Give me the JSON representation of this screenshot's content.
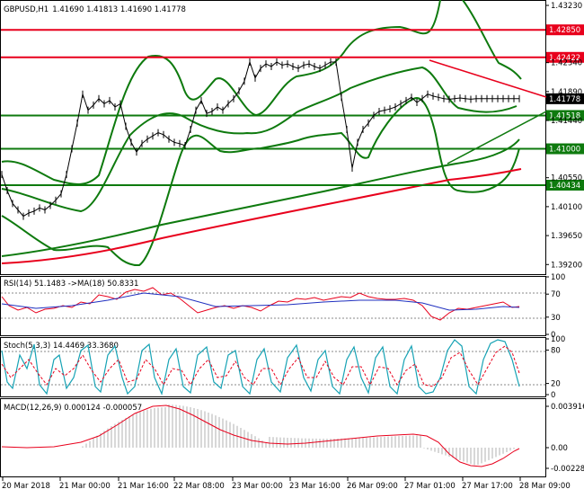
{
  "chart_data": {
    "type": "line",
    "symbol": "GBPUSD,H1",
    "ohlc_header": "1.41690 1.41813 1.41690 1.41778",
    "price_panel": {
      "ylim": [
        1.3905,
        1.433
      ],
      "yticks": [
        "1.43230",
        "1.42340",
        "1.41890",
        "1.41440",
        "1.40550",
        "1.40100",
        "1.39650",
        "1.39200"
      ],
      "levels": [
        {
          "value": 1.4285,
          "label": "1.42850",
          "color": "#e8001c"
        },
        {
          "value": 1.42422,
          "label": "1.42422",
          "color": "#e8001c"
        },
        {
          "value": 1.41518,
          "label": "1.41518",
          "color": "#0e7a0e"
        },
        {
          "value": 1.41,
          "label": "1.41000",
          "color": "#0e7a0e"
        },
        {
          "value": 1.40434,
          "label": "1.40434",
          "color": "#0e7a0e"
        }
      ],
      "last_price": {
        "value": 1.41778,
        "label": "1.41778",
        "color": "#000000"
      },
      "close_x": [
        0,
        6,
        12,
        18,
        24,
        30,
        36,
        42,
        48,
        54,
        60,
        66,
        72,
        78,
        84,
        90,
        96,
        102,
        108,
        114,
        120,
        126,
        132,
        138,
        144,
        150,
        156,
        162,
        168,
        174,
        180,
        186,
        192,
        198,
        204,
        210,
        216,
        222,
        228,
        234,
        240,
        246,
        252,
        258,
        264,
        270,
        276,
        282,
        288,
        294,
        300,
        306,
        312,
        318,
        324,
        330,
        336,
        342,
        348,
        354,
        360,
        366,
        372,
        378,
        384,
        390,
        396,
        402,
        408,
        414,
        420,
        426,
        432,
        438,
        444,
        450,
        456,
        462,
        468,
        474,
        480,
        486,
        492,
        498,
        504,
        510,
        516,
        522,
        528,
        534,
        540,
        546,
        552,
        558,
        564,
        570,
        576
      ],
      "close": [
        1.406,
        1.4035,
        1.4015,
        1.4005,
        1.3995,
        1.4,
        1.4003,
        1.4008,
        1.4005,
        1.4012,
        1.402,
        1.403,
        1.406,
        1.41,
        1.414,
        1.4185,
        1.416,
        1.4168,
        1.4178,
        1.417,
        1.4175,
        1.4165,
        1.417,
        1.4135,
        1.411,
        1.4095,
        1.4108,
        1.4115,
        1.412,
        1.4125,
        1.4122,
        1.4115,
        1.411,
        1.4108,
        1.4105,
        1.413,
        1.416,
        1.4175,
        1.4155,
        1.4158,
        1.4165,
        1.416,
        1.417,
        1.4178,
        1.419,
        1.4205,
        1.4235,
        1.421,
        1.4225,
        1.4232,
        1.4228,
        1.4235,
        1.423,
        1.4232,
        1.4228,
        1.4225,
        1.423,
        1.4232,
        1.4228,
        1.4225,
        1.423,
        1.4235,
        1.4235,
        1.418,
        1.413,
        1.407,
        1.411,
        1.413,
        1.414,
        1.4152,
        1.4158,
        1.416,
        1.4162,
        1.4165,
        1.417,
        1.4175,
        1.418,
        1.4172,
        1.4178,
        1.4185,
        1.4182,
        1.418,
        1.4178,
        1.4177,
        1.4178,
        1.4179,
        1.4178,
        1.4177,
        1.4178,
        1.4178,
        1.4178,
        1.4178,
        1.4178,
        1.4178,
        1.4178,
        1.4178,
        1.4178
      ]
    },
    "rsi_panel": {
      "label": "RSI(14) 51.1483 ->MA(18) 50.8331",
      "yticks": [
        "100",
        "70",
        "30",
        "0"
      ],
      "last": 51.1483,
      "ma": 50.8331
    },
    "stoch_panel": {
      "label": "Stoch(5,3,3) 14.4469 33.3680",
      "yticks": [
        "100",
        "80",
        "20",
        "0"
      ],
      "k": 14.4469,
      "d": 33.368
    },
    "macd_panel": {
      "label": "MACD(12,26,9) 0.000124 -0.000057",
      "yticks": [
        "0.003916",
        "0.00",
        "-0.002283"
      ],
      "main": 0.000124,
      "signal": -5.7e-05
    },
    "x_labels": [
      "20 Mar 2018",
      "21 Mar 00:00",
      "21 Mar 16:00",
      "22 Mar 08:00",
      "23 Mar 00:00",
      "23 Mar 16:00",
      "26 Mar 09:00",
      "27 Mar 01:00",
      "27 Mar 17:00",
      "28 Mar 09:00"
    ]
  }
}
